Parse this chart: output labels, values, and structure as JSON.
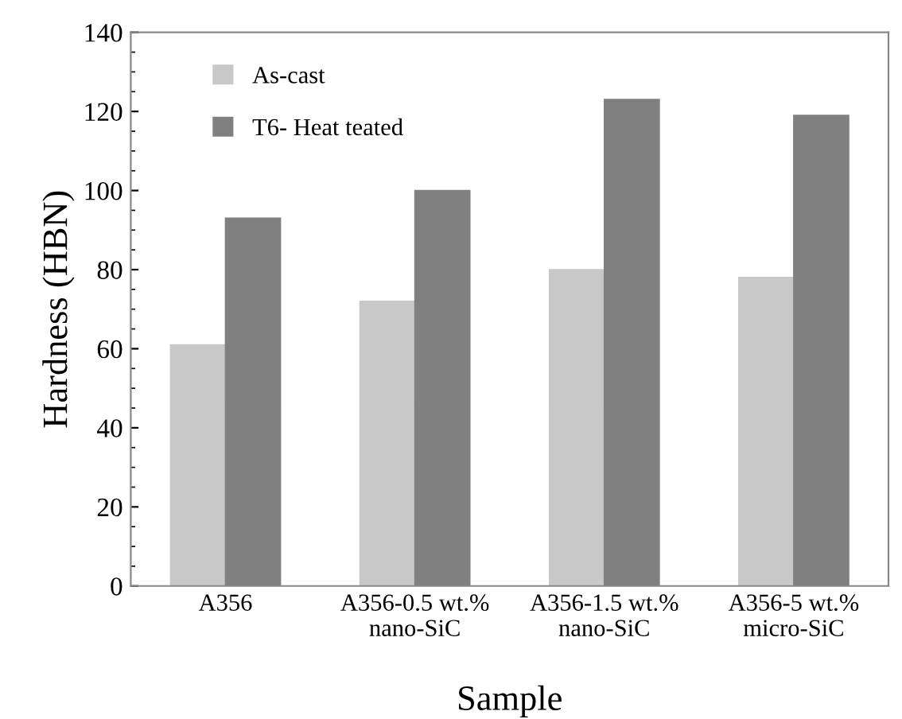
{
  "chart_data": {
    "type": "bar",
    "xlabel": "Sample",
    "ylabel": "Hardness (HBN)",
    "categories": [
      "A356",
      "A356-0.5 wt.%\nnano-SiC",
      "A356-1.5 wt.%\nnano-SiC",
      "A356-5 wt.%\nmicro-SiC"
    ],
    "series": [
      {
        "name": "As-cast",
        "color": "#c8c8c8",
        "values": [
          61,
          72,
          80,
          78
        ]
      },
      {
        "name": "T6- Heat teated",
        "color": "#808080",
        "values": [
          93,
          100,
          123,
          119
        ]
      }
    ],
    "ylim": [
      0,
      140
    ],
    "yticks": [
      0,
      20,
      40,
      60,
      80,
      100,
      120,
      140
    ],
    "grid": false,
    "legend": "top left"
  }
}
